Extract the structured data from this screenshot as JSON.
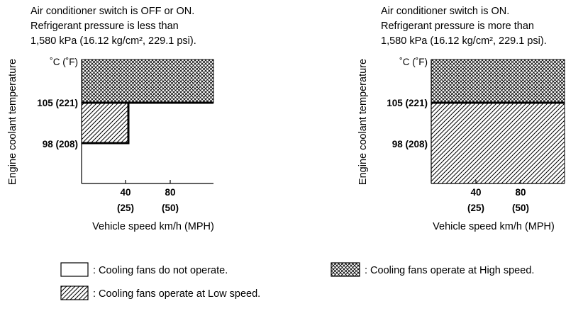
{
  "left_panel": {
    "condition_lines": [
      "Air conditioner switch is OFF or ON.",
      "Refrigerant pressure is less than",
      "1,580 kPa (16.12 kg/cm², 229.1 psi)."
    ],
    "y_axis_label": "Engine coolant temperature",
    "y_unit_label": "˚C (˚F)",
    "y_ticks": [
      "105 (221)",
      "98 (208)"
    ],
    "x_ticks": [
      {
        "kmh": "40",
        "mph": "(25)"
      },
      {
        "kmh": "80",
        "mph": "(50)"
      }
    ],
    "x_axis_label": "Vehicle speed km/h (MPH)"
  },
  "right_panel": {
    "condition_lines": [
      "Air conditioner switch is ON.",
      "Refrigerant pressure is more than",
      "1,580 kPa (16.12 kg/cm², 229.1 psi)."
    ],
    "y_axis_label": "Engine coolant temperature",
    "y_unit_label": "˚C (˚F)",
    "y_ticks": [
      "105 (221)",
      "98 (208)"
    ],
    "x_ticks": [
      {
        "kmh": "40",
        "mph": "(25)"
      },
      {
        "kmh": "80",
        "mph": "(50)"
      }
    ],
    "x_axis_label": "Vehicle speed km/h (MPH)"
  },
  "legend": {
    "off": ": Cooling fans do not operate.",
    "low": ": Cooling fans operate at Low speed.",
    "high": ": Cooling fans operate at High speed."
  }
}
